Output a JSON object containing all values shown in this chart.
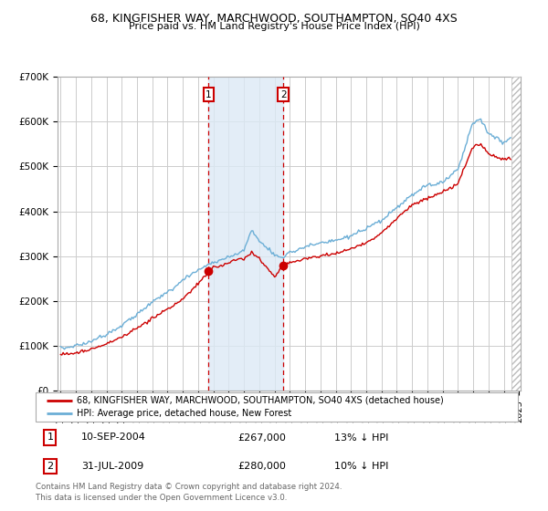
{
  "title_line1": "68, KINGFISHER WAY, MARCHWOOD, SOUTHAMPTON, SO40 4XS",
  "title_line2": "Price paid vs. HM Land Registry's House Price Index (HPI)",
  "ylim": [
    0,
    700000
  ],
  "yticks": [
    0,
    100000,
    200000,
    300000,
    400000,
    500000,
    600000,
    700000
  ],
  "ytick_labels": [
    "£0",
    "£100K",
    "£200K",
    "£300K",
    "£400K",
    "£500K",
    "£600K",
    "£700K"
  ],
  "sale1_date_label": "10-SEP-2004",
  "sale1_price": 267000,
  "sale1_price_label": "£267,000",
  "sale1_hpi_label": "13% ↓ HPI",
  "sale2_date_label": "31-JUL-2009",
  "sale2_price": 280000,
  "sale2_price_label": "£280,000",
  "sale2_hpi_label": "10% ↓ HPI",
  "legend_label1": "68, KINGFISHER WAY, MARCHWOOD, SOUTHAMPTON, SO40 4XS (detached house)",
  "legend_label2": "HPI: Average price, detached house, New Forest",
  "footer": "Contains HM Land Registry data © Crown copyright and database right 2024.\nThis data is licensed under the Open Government Licence v3.0.",
  "hpi_color": "#6baed6",
  "price_color": "#cc0000",
  "background_color": "#ffffff",
  "grid_color": "#cccccc",
  "sale_region_color": "#dce9f5",
  "sale1_x": 2004.69,
  "sale2_x": 2009.58,
  "xmin": 1995,
  "xmax": 2025
}
